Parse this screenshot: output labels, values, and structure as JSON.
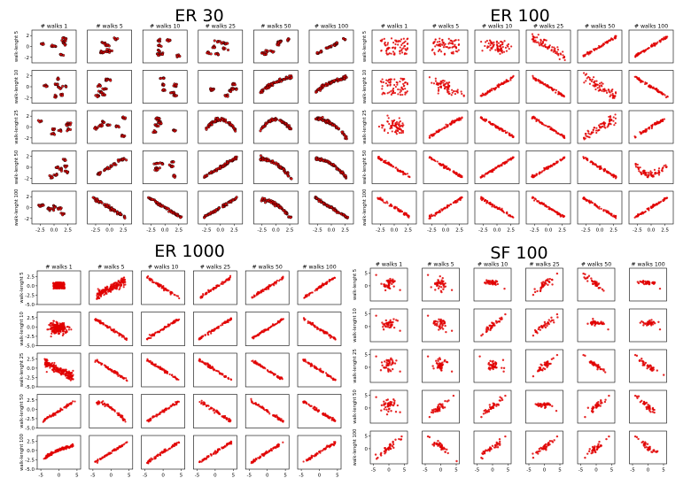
{
  "figure_background": "#ffffff",
  "point_color": "#e00000",
  "edge_color": "#000000",
  "chart_data": [
    {
      "type": "scatter",
      "title": "ER 30",
      "col_titles": [
        "# walks 1",
        "# walks 5",
        "# walks 10",
        "# walks 25",
        "# walks 50",
        "# walks 100"
      ],
      "row_labels": [
        "walk-lenght 5",
        "walk-lenght 10",
        "walk-lenght 25",
        "walk-lenght 50",
        "walk-lenght 100"
      ],
      "ytick_labels": [
        "2",
        "0",
        "-2"
      ],
      "ytick_values": [
        2,
        0,
        -2
      ],
      "ylim": [
        -3,
        3
      ],
      "xtick_labels": [
        "-2.5",
        "0.0",
        "2.5"
      ],
      "xtick_values": [
        -2.5,
        0,
        2.5
      ],
      "xlim": [
        -4,
        4
      ],
      "panel_patterns": [
        [
          "clusters",
          "clusters",
          "clusters",
          "clusters",
          "cluster-trend",
          "cluster-diag"
        ],
        [
          "clusters",
          "clusters",
          "clusters",
          "clusters",
          "arc-up",
          "arc-up-strong"
        ],
        [
          "clusters",
          "clusters",
          "clusters",
          "arc-hump",
          "arc-hump",
          "arc-down"
        ],
        [
          "clusters",
          "cluster-diag",
          "clusters",
          "diag-pos",
          "arc-down",
          "arc-down-flat"
        ],
        [
          "clusters-neg",
          "diag-neg",
          "diag-neg",
          "diag-pos",
          "arc-neg",
          "diag-neg"
        ]
      ]
    },
    {
      "type": "scatter",
      "title": "ER 100",
      "col_titles": [
        "# walks 1",
        "# walks 5",
        "# walks 10",
        "# walks 25",
        "# walks 50",
        "# walks 100"
      ],
      "row_labels": [
        "walk-lenght 5",
        "walk-lenght 10",
        "walk-lenght 25",
        "walk-lenght 50",
        "walk-lenght 100"
      ],
      "ytick_labels": [
        "2",
        "0",
        "-2"
      ],
      "ytick_values": [
        2,
        0,
        -2
      ],
      "ylim": [
        -3,
        3
      ],
      "xtick_labels": [
        "-2.5",
        "0.0",
        "2.5"
      ],
      "xtick_values": [
        -2.5,
        0,
        2.5
      ],
      "xlim": [
        -4,
        4
      ],
      "panel_patterns": [
        [
          "band",
          "band",
          "blob",
          "diag-neg-wide",
          "diag-pos",
          "diag-pos"
        ],
        [
          "band",
          "blob-neg",
          "diag-pos",
          "diag-neg",
          "diag-neg-wide",
          "diag-neg"
        ],
        [
          "blob",
          "diag-pos",
          "diag-neg",
          "diag-neg",
          "diag-pos-wide",
          "diag-pos"
        ],
        [
          "diag-neg",
          "diag-neg",
          "diag-pos",
          "diag-pos",
          "diag-neg",
          "u-shape"
        ],
        [
          "diag-neg",
          "diag-pos",
          "diag-neg",
          "diag-neg",
          "diag-neg",
          "diag-pos"
        ]
      ]
    },
    {
      "type": "scatter",
      "title": "ER 1000",
      "col_titles": [
        "# walks 1",
        "# walks 5",
        "# walks 10",
        "# walks 25",
        "# walks 50",
        "# walks 100"
      ],
      "row_labels": [
        "walk-lenght 5",
        "walk-lenght 10",
        "walk-lenght 25",
        "walk-lenght 50",
        "walk-lenght 100"
      ],
      "ytick_labels": [
        "2.5",
        "0.0",
        "-2.5",
        "-5.0"
      ],
      "ytick_values": [
        2.5,
        0,
        -2.5,
        -5
      ],
      "ylim": [
        -5,
        4
      ],
      "xtick_labels": [
        "-5",
        "0",
        "5"
      ],
      "xtick_values": [
        -5,
        0,
        5
      ],
      "xlim": [
        -6,
        6
      ],
      "panel_patterns": [
        [
          "square",
          "fan-pos",
          "diag-neg",
          "diag-pos",
          "diag-pos",
          "diag-pos"
        ],
        [
          "blob-dense",
          "diag-neg",
          "diag-pos",
          "diag-pos",
          "diag-pos",
          "diag-neg"
        ],
        [
          "fan-neg",
          "diag-neg",
          "diag-neg",
          "diag-neg",
          "diag-neg",
          "diag-neg"
        ],
        [
          "diag-pos",
          "arc-down",
          "diag-pos",
          "diag-neg",
          "diag-neg",
          "diag-neg"
        ],
        [
          "arc-pos",
          "diag-pos",
          "diag-pos",
          "diag-pos",
          "diag-pos",
          "diag-pos"
        ]
      ]
    },
    {
      "type": "scatter",
      "title": "SF 100",
      "col_titles": [
        "# walks 1",
        "# walks 5",
        "# walks 10",
        "# walks 25",
        "# walks 50",
        "# walks 100"
      ],
      "row_labels": [
        "walk-lenght 5",
        "walk-lenght 10",
        "walk-lenght 25",
        "walk-lenght 50",
        "walk-lenght 100"
      ],
      "ytick_labels": [
        "5",
        "0"
      ],
      "ytick_values": [
        5,
        0
      ],
      "ylim": [
        -6,
        7
      ],
      "xtick_labels": [
        "-5",
        "0",
        "5"
      ],
      "xtick_values": [
        -5,
        0,
        5
      ],
      "xlim": [
        -6,
        6
      ],
      "panel_patterns": [
        [
          "sparse-blob",
          "sparse-blob",
          "sparse-flat",
          "sparse-pos",
          "sparse-neg",
          "sparse-flat"
        ],
        [
          "sparse-blob",
          "sparse-blob",
          "sparse-pos",
          "sparse-pos",
          "sparse-flat",
          "sparse-flat"
        ],
        [
          "sparse-blob",
          "sparse-blob",
          "sparse-blob",
          "sparse-pos",
          "sparse-neg",
          "sparse-neg"
        ],
        [
          "sparse-blob",
          "sparse-pos",
          "sparse-pos",
          "sparse-flat",
          "sparse-pos",
          "sparse-neg"
        ],
        [
          "sparse-pos",
          "sparse-neg",
          "sparse-pos",
          "sparse-pos",
          "sparse-pos",
          "sparse-neg"
        ]
      ]
    }
  ]
}
